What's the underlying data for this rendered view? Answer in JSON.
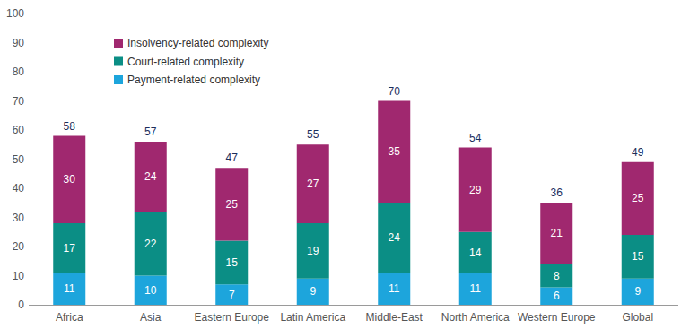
{
  "chart_data": {
    "type": "bar",
    "stacked": true,
    "data_labels": true,
    "grid": false,
    "legend": "top-left",
    "categories": [
      "Africa",
      "Asia",
      "Eastern Europe",
      "Latin America",
      "Middle-East",
      "North America",
      "Western Europe",
      "Global"
    ],
    "series": [
      {
        "name": "Payment-related complexity",
        "color": "#1da5dc",
        "values": [
          11,
          10,
          7,
          9,
          11,
          11,
          6,
          9
        ]
      },
      {
        "name": "Court-related complexity",
        "color": "#0b8e85",
        "values": [
          17,
          22,
          15,
          19,
          24,
          14,
          8,
          15
        ]
      },
      {
        "name": "Insolvency-related complexity",
        "color": "#a0286f",
        "values": [
          30,
          24,
          25,
          27,
          35,
          29,
          21,
          25
        ]
      }
    ],
    "totals": [
      58,
      57,
      47,
      55,
      70,
      54,
      36,
      49
    ],
    "ylim": [
      0,
      100
    ],
    "yticks": [
      0,
      10,
      20,
      30,
      40,
      50,
      60,
      70,
      80,
      90,
      100
    ]
  }
}
